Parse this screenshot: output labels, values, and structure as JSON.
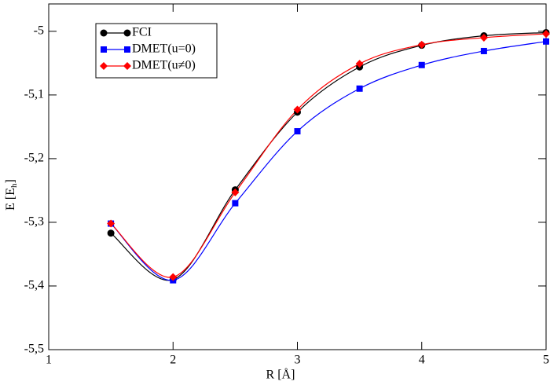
{
  "chart_data": {
    "type": "line",
    "x": [
      1.5,
      2,
      2.5,
      3,
      3.5,
      4,
      4.5,
      5
    ],
    "series": [
      {
        "name": "FCI",
        "color": "#000000",
        "marker": "circle",
        "values": [
          -5.317,
          -5.39,
          -5.249,
          -5.127,
          -5.056,
          -5.022,
          -5.007,
          -5.002
        ]
      },
      {
        "name": "DMET(u=0)",
        "color": "#0000ff",
        "marker": "square",
        "values": [
          -5.302,
          -5.391,
          -5.27,
          -5.157,
          -5.09,
          -5.053,
          -5.031,
          -5.016
        ]
      },
      {
        "name": "DMET(u≠0)",
        "color": "#ff0000",
        "marker": "diamond",
        "values": [
          -5.302,
          -5.386,
          -5.253,
          -5.123,
          -5.051,
          -5.021,
          -5.01,
          -5.004
        ]
      }
    ],
    "xlabel": "R [Å]",
    "ylabel": [
      "E  [E",
      "h",
      "]"
    ],
    "xlim": [
      1,
      5
    ],
    "xticks": [
      1,
      2,
      3,
      4,
      5
    ],
    "ylim": [
      -5.5,
      -4.957
    ],
    "yticks": [
      {
        "value": -5.5,
        "label": "-5,5"
      },
      {
        "value": -5.4,
        "label": "-5,4"
      },
      {
        "value": -5.3,
        "label": "-5,3"
      },
      {
        "value": -5.2,
        "label": "-5,2"
      },
      {
        "value": -5.1,
        "label": "-5,1"
      },
      -5
    ],
    "legend": "upper left",
    "grid": false
  }
}
